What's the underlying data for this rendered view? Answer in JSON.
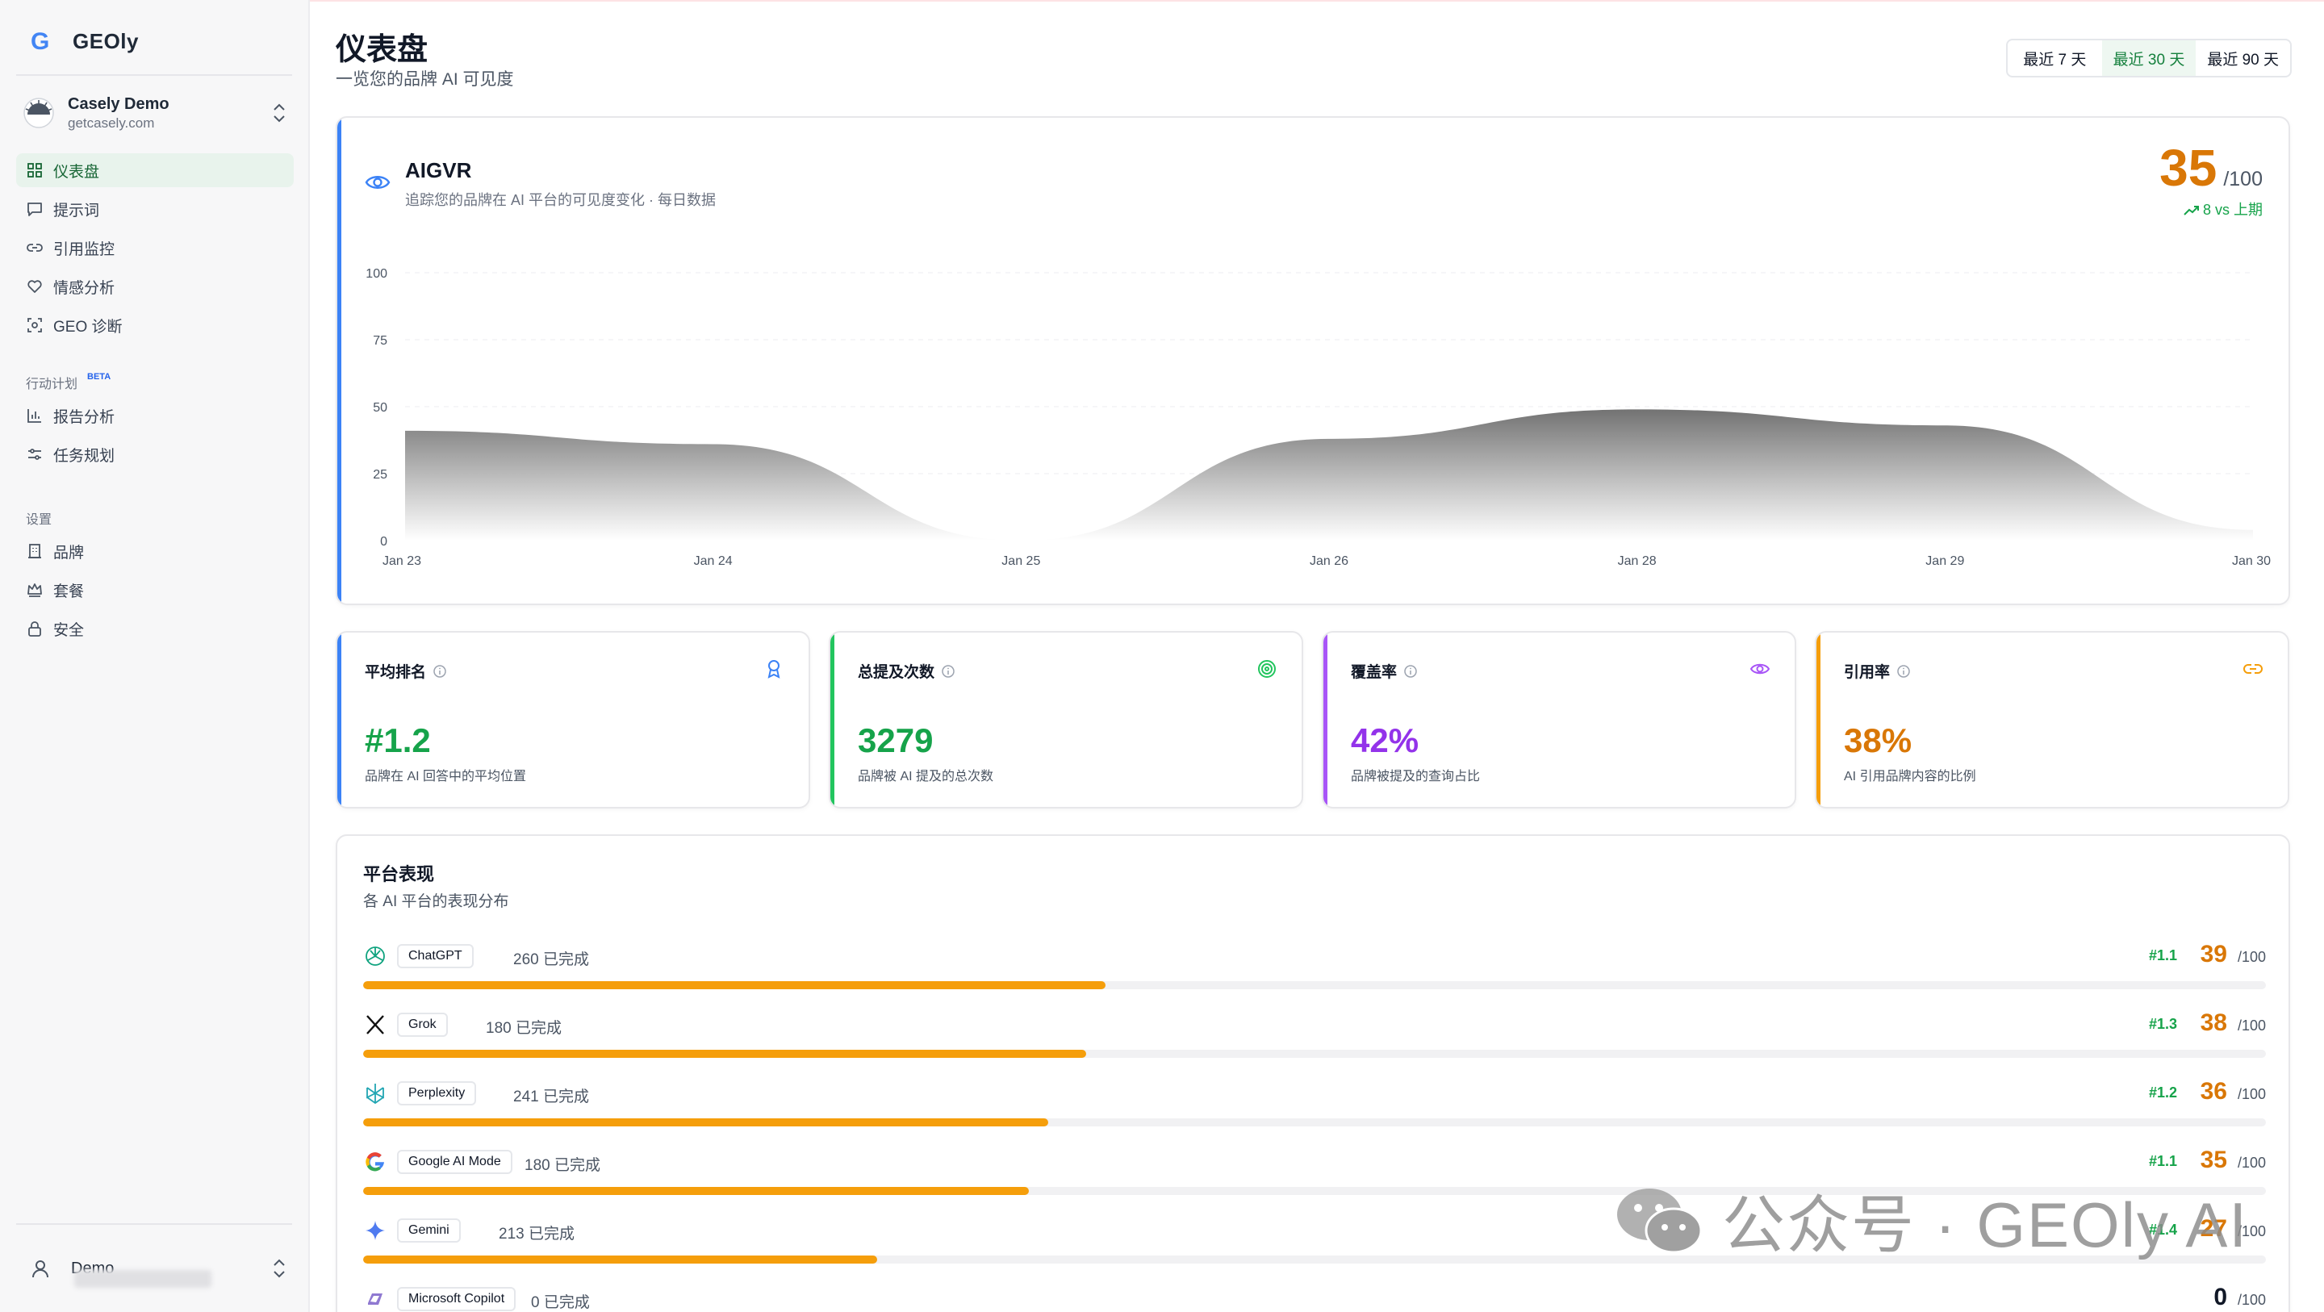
{
  "app": {
    "name": "GEOly",
    "logo_letter": "G"
  },
  "account": {
    "name": "Casely Demo",
    "domain": "getcasely.com"
  },
  "nav": {
    "main": [
      {
        "key": "dashboard",
        "label": "仪表盘",
        "active": true
      },
      {
        "key": "prompts",
        "label": "提示词"
      },
      {
        "key": "citations",
        "label": "引用监控"
      },
      {
        "key": "sentiment",
        "label": "情感分析"
      },
      {
        "key": "geo",
        "label": "GEO 诊断"
      }
    ],
    "action_section": "行动计划",
    "action_badge": "BETA",
    "action": [
      {
        "key": "reports",
        "label": "报告分析"
      },
      {
        "key": "tasks",
        "label": "任务规划"
      }
    ],
    "settings_section": "设置",
    "settings": [
      {
        "key": "brand",
        "label": "品牌"
      },
      {
        "key": "plan",
        "label": "套餐"
      },
      {
        "key": "security",
        "label": "安全"
      }
    ]
  },
  "user": {
    "name": "Demo"
  },
  "page": {
    "title": "仪表盘",
    "subtitle": "一览您的品牌 AI 可见度"
  },
  "range_tabs": [
    {
      "label": "最近 7 天",
      "active": false
    },
    {
      "label": "最近 30 天",
      "active": true
    },
    {
      "label": "最近 90 天",
      "active": false
    }
  ],
  "aigvr": {
    "title": "AIGVR",
    "description": "追踪您的品牌在 AI 平台的可见度变化 · 每日数据",
    "score": "35",
    "score_max": "/100",
    "trend": "8 vs 上期"
  },
  "chart_data": {
    "type": "area",
    "x": [
      "Jan 23",
      "Jan 24",
      "Jan 25",
      "Jan 26",
      "Jan 28",
      "Jan 29",
      "Jan 30"
    ],
    "values": [
      41,
      36,
      0,
      38,
      49,
      43,
      4
    ],
    "yticks": [
      0,
      25,
      50,
      75,
      100
    ],
    "ylim": [
      0,
      100
    ],
    "grid": true
  },
  "metrics": [
    {
      "key": "rank",
      "label": "平均排名",
      "value": "#1.2",
      "desc": "品牌在 AI 回答中的平均位置",
      "color": "#16a34a",
      "icon": "award-icon"
    },
    {
      "key": "mentions",
      "label": "总提及次数",
      "value": "3279",
      "desc": "品牌被 AI 提及的总次数",
      "color": "#16a34a",
      "icon": "target-icon"
    },
    {
      "key": "coverage",
      "label": "覆盖率",
      "value": "42%",
      "desc": "品牌被提及的查询占比",
      "color": "#9333ea",
      "icon": "eye-icon"
    },
    {
      "key": "citation",
      "label": "引用率",
      "value": "38%",
      "desc": "AI 引用品牌内容的比例",
      "color": "#d97706",
      "icon": "link-icon"
    }
  ],
  "platforms": {
    "title": "平台表现",
    "subtitle": "各 AI 平台的表现分布",
    "max_label": "/100",
    "rows": [
      {
        "name": "ChatGPT",
        "count": "260 已完成",
        "rank": "#1.1",
        "score": "39",
        "progress": 0.39,
        "icon": "chatgpt-icon"
      },
      {
        "name": "Grok",
        "count": "180 已完成",
        "rank": "#1.3",
        "score": "38",
        "progress": 0.38,
        "icon": "x-icon"
      },
      {
        "name": "Perplexity",
        "count": "241 已完成",
        "rank": "#1.2",
        "score": "36",
        "progress": 0.36,
        "icon": "perplexity-icon"
      },
      {
        "name": "Google AI Mode",
        "count": "180 已完成",
        "rank": "#1.1",
        "score": "35",
        "progress": 0.35,
        "icon": "google-icon"
      },
      {
        "name": "Gemini",
        "count": "213 已完成",
        "rank": "#1.4",
        "score": "27",
        "progress": 0.27,
        "icon": "gemini-icon"
      },
      {
        "name": "Microsoft Copilot",
        "count": "0 已完成",
        "rank": "",
        "score": "0",
        "progress": 0,
        "icon": "copilot-icon"
      }
    ]
  },
  "watermark": {
    "text": "公众号 · GEOly AI"
  }
}
